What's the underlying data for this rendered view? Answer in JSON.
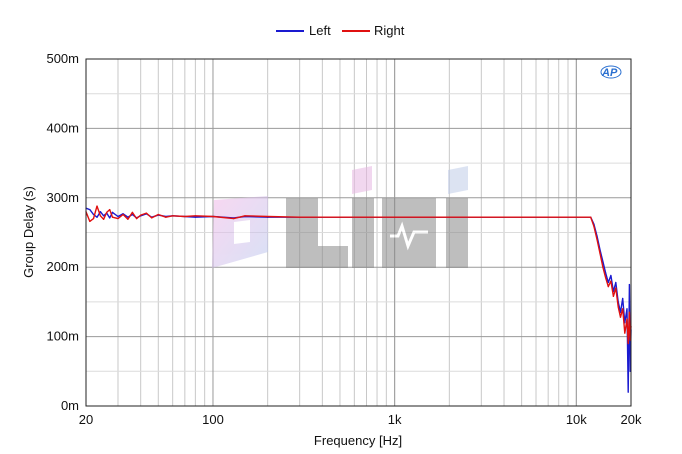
{
  "chart_data": {
    "type": "line",
    "xlabel": "Frequency [Hz]",
    "ylabel": "Group Delay (s)",
    "x_scale": "log",
    "xlim": [
      20,
      20000
    ],
    "ylim": [
      0,
      0.5
    ],
    "grid": true,
    "legend_position": "top-center",
    "x_ticks": [
      {
        "value": 20,
        "label": "20"
      },
      {
        "value": 100,
        "label": "100"
      },
      {
        "value": 1000,
        "label": "1k"
      },
      {
        "value": 10000,
        "label": "10k"
      },
      {
        "value": 20000,
        "label": "20k"
      }
    ],
    "y_ticks": [
      {
        "value": 0,
        "label": "0m"
      },
      {
        "value": 0.1,
        "label": "100m"
      },
      {
        "value": 0.2,
        "label": "200m"
      },
      {
        "value": 0.3,
        "label": "300m"
      },
      {
        "value": 0.4,
        "label": "400m"
      },
      {
        "value": 0.5,
        "label": "500m"
      }
    ],
    "series": [
      {
        "name": "Left",
        "color": "#1a1ad0",
        "x": [
          20,
          21,
          22,
          23,
          24,
          25,
          26,
          27,
          28,
          30,
          32,
          34,
          36,
          38,
          40,
          43,
          46,
          50,
          55,
          60,
          70,
          80,
          100,
          130,
          150,
          200,
          300,
          500,
          1000,
          2000,
          5000,
          8000,
          10000,
          12000,
          12500,
          13000,
          13500,
          14000,
          14500,
          15000,
          15500,
          16000,
          16500,
          17000,
          17500,
          18000,
          18500,
          19000,
          19300,
          19600,
          19800,
          20000
        ],
        "values": [
          0.285,
          0.283,
          0.276,
          0.272,
          0.28,
          0.274,
          0.278,
          0.271,
          0.279,
          0.273,
          0.277,
          0.272,
          0.276,
          0.271,
          0.274,
          0.277,
          0.272,
          0.275,
          0.273,
          0.274,
          0.273,
          0.272,
          0.273,
          0.271,
          0.273,
          0.272,
          0.272,
          0.272,
          0.272,
          0.272,
          0.272,
          0.272,
          0.272,
          0.272,
          0.262,
          0.245,
          0.225,
          0.208,
          0.192,
          0.178,
          0.188,
          0.165,
          0.178,
          0.15,
          0.135,
          0.155,
          0.12,
          0.14,
          0.02,
          0.175,
          0.05,
          0.11
        ]
      },
      {
        "name": "Right",
        "color": "#e01010",
        "x": [
          20,
          21,
          22,
          23,
          24,
          25,
          26,
          27,
          28,
          30,
          32,
          34,
          36,
          38,
          40,
          43,
          46,
          50,
          55,
          60,
          70,
          80,
          100,
          130,
          150,
          200,
          300,
          500,
          1000,
          2000,
          5000,
          8000,
          10000,
          12000,
          12500,
          13000,
          13500,
          14000,
          14500,
          15000,
          15500,
          16000,
          16500,
          17000,
          17500,
          18000,
          18500,
          19000,
          19300,
          19600,
          19800,
          20000
        ],
        "values": [
          0.28,
          0.266,
          0.27,
          0.288,
          0.274,
          0.269,
          0.279,
          0.283,
          0.272,
          0.27,
          0.276,
          0.269,
          0.279,
          0.27,
          0.275,
          0.278,
          0.271,
          0.276,
          0.272,
          0.274,
          0.273,
          0.274,
          0.273,
          0.27,
          0.274,
          0.273,
          0.272,
          0.272,
          0.272,
          0.272,
          0.272,
          0.272,
          0.272,
          0.272,
          0.259,
          0.24,
          0.22,
          0.2,
          0.185,
          0.172,
          0.18,
          0.158,
          0.17,
          0.143,
          0.128,
          0.14,
          0.105,
          0.125,
          0.09,
          0.135,
          0.095,
          0.115
        ]
      }
    ]
  }
}
